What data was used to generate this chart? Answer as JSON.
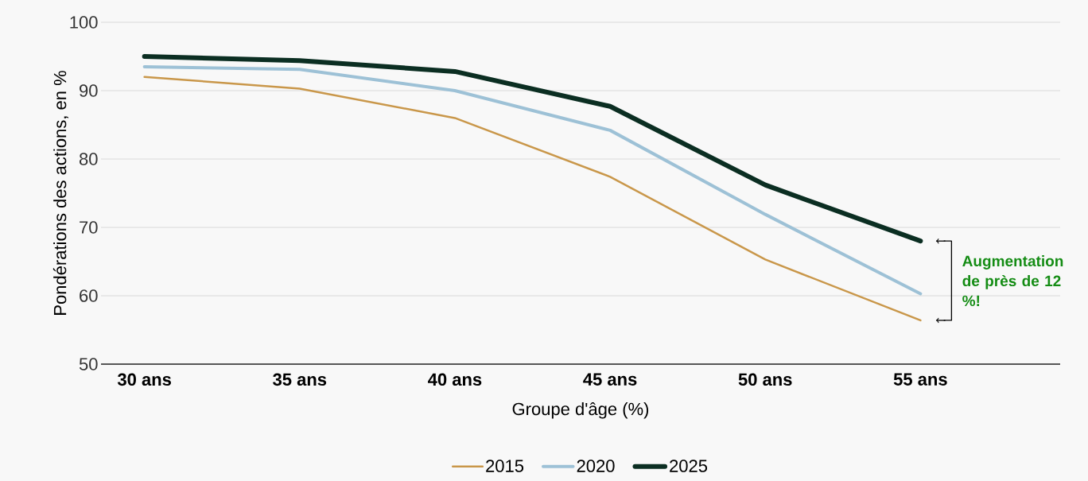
{
  "chart_data": {
    "type": "line",
    "xlabel": "Groupe d'âge (%)",
    "ylabel": "Pondérations des actions, en %",
    "categories": [
      "30 ans",
      "35 ans",
      "40 ans",
      "45 ans",
      "50 ans",
      "55 ans"
    ],
    "series": [
      {
        "name": "2015",
        "color": "#c9974a",
        "values": [
          92.0,
          90.3,
          86.0,
          77.4,
          65.3,
          56.4
        ]
      },
      {
        "name": "2020",
        "color": "#9dc1d6",
        "values": [
          93.5,
          93.1,
          90.0,
          84.2,
          71.9,
          60.3
        ]
      },
      {
        "name": "2025",
        "color": "#0b2e22",
        "values": [
          95.0,
          94.4,
          92.8,
          87.7,
          76.2,
          68.0
        ]
      }
    ],
    "ylim": [
      50,
      100
    ],
    "yticks": [
      50,
      60,
      70,
      80,
      90,
      100
    ],
    "grid": "y",
    "legend": "bottom",
    "marker": "none",
    "line_style": "solid",
    "annotations": [
      "Augmentation de près de 12 %!"
    ]
  }
}
